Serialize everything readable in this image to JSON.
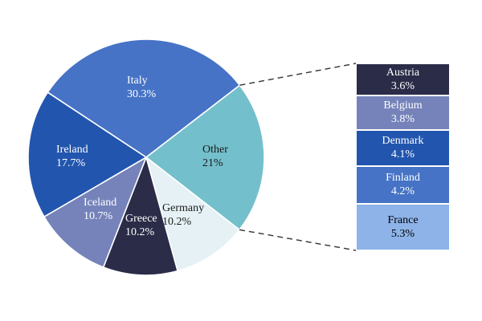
{
  "chart_data": {
    "type": "pie",
    "title": "",
    "legend_position": "none",
    "slices": [
      {
        "label": "Italy",
        "value": 30.3,
        "pct_label": "30.3%",
        "color": "#4673C6",
        "text_color": "#FFFFFF"
      },
      {
        "label": "Other",
        "value": 21,
        "pct_label": "21%",
        "color": "#74BFCC",
        "text_color": "#1A1A1A",
        "breakout": true
      },
      {
        "label": "Germany",
        "value": 10.2,
        "pct_label": "10.2%",
        "color": "#E5F1F5",
        "text_color": "#1A1A1A"
      },
      {
        "label": "Greece",
        "value": 10.2,
        "pct_label": "10.2%",
        "color": "#2B2C48",
        "text_color": "#FFFFFF"
      },
      {
        "label": "Iceland",
        "value": 10.7,
        "pct_label": "10.7%",
        "color": "#7583BA",
        "text_color": "#FFFFFF"
      },
      {
        "label": "Ireland",
        "value": 17.7,
        "pct_label": "17.7%",
        "color": "#2255AE",
        "text_color": "#FFFFFF"
      }
    ],
    "breakout_bars": [
      {
        "label": "Austria",
        "value": 3.6,
        "pct_label": "3.6%",
        "color": "#2B2C48",
        "text_color": "#FFFFFF"
      },
      {
        "label": "Belgium",
        "value": 3.8,
        "pct_label": "3.8%",
        "color": "#7583BA",
        "text_color": "#FFFFFF"
      },
      {
        "label": "Denmark",
        "value": 4.1,
        "pct_label": "4.1%",
        "color": "#2255AE",
        "text_color": "#FFFFFF"
      },
      {
        "label": "Finland",
        "value": 4.2,
        "pct_label": "4.2%",
        "color": "#4673C6",
        "text_color": "#FFFFFF"
      },
      {
        "label": "France",
        "value": 5.3,
        "pct_label": "5.3%",
        "color": "#8DB3E8",
        "text_color": "#000000"
      }
    ],
    "layout_hints": {
      "pie_center": [
        182,
        196
      ],
      "pie_radius": 147,
      "start_angle_deg": -56.6,
      "clockwise": true,
      "slice_border_color": "#FFFFFF",
      "connector_style": "dashed",
      "connector_color": "#333333",
      "background": "#FFFFFF"
    }
  }
}
